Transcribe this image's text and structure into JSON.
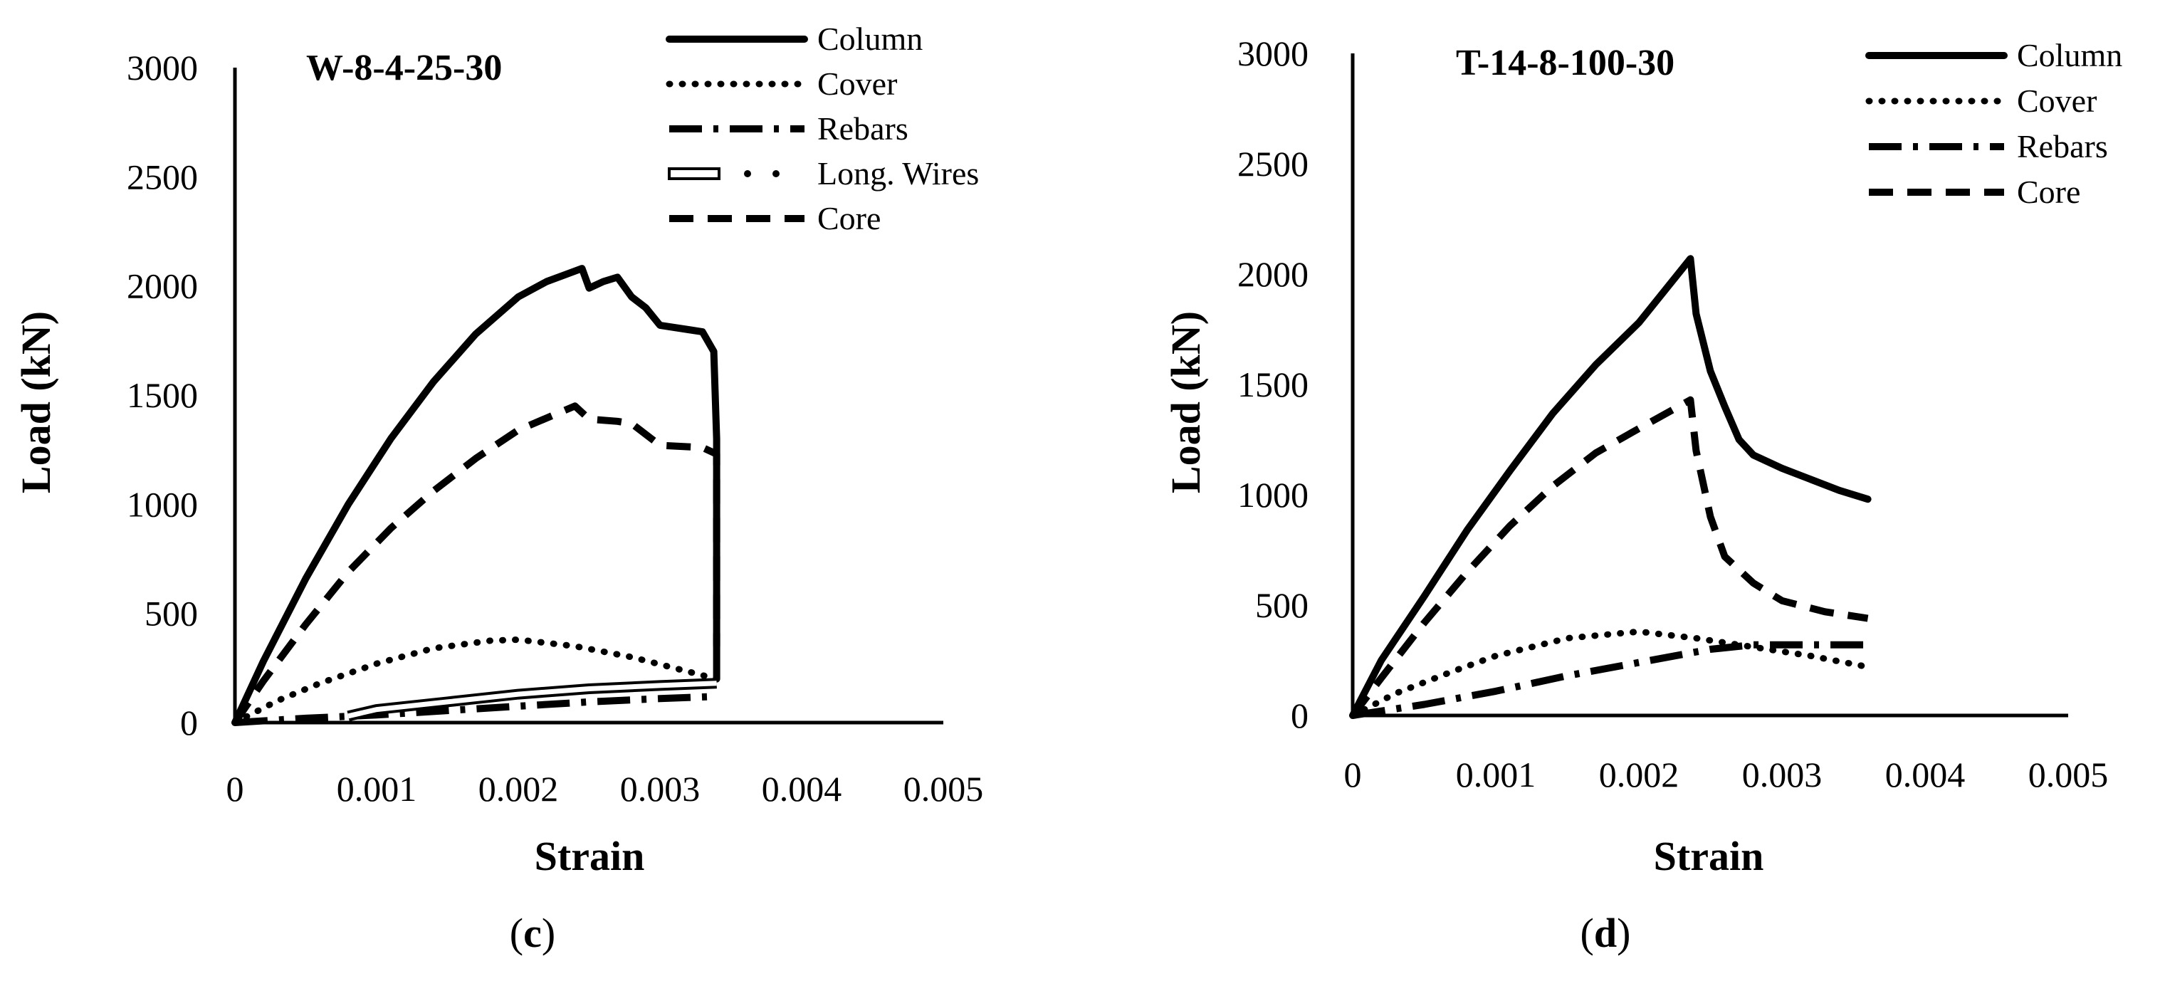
{
  "chart_data": [
    {
      "type": "line",
      "title": "W-8-4-25-30",
      "xlabel": "Strain",
      "ylabel": "Load (kN)",
      "panel_label_open": "(",
      "panel_label_letter": "c",
      "panel_label_close": ")",
      "xlim": [
        0,
        0.005
      ],
      "ylim": [
        0,
        3000
      ],
      "x_ticks": [
        "0",
        "0.001",
        "0.002",
        "0.003",
        "0.004",
        "0.005"
      ],
      "y_ticks": [
        "0",
        "500",
        "1000",
        "1500",
        "2000",
        "2500",
        "3000"
      ],
      "legend_position": "top-right",
      "series": [
        {
          "name": "Column",
          "style": "solid",
          "x": [
            0,
            0.0002,
            0.0005,
            0.0008,
            0.0011,
            0.0014,
            0.0017,
            0.002,
            0.0022,
            0.00245,
            0.0025,
            0.0026,
            0.0027,
            0.0028,
            0.0029,
            0.003,
            0.0032,
            0.0033,
            0.00338,
            0.0034,
            0.0034
          ],
          "y": [
            0,
            280,
            660,
            1000,
            1300,
            1560,
            1780,
            1950,
            2020,
            2080,
            1990,
            2020,
            2040,
            1950,
            1900,
            1820,
            1800,
            1790,
            1700,
            1300,
            200
          ]
        },
        {
          "name": "Cover",
          "style": "dotted",
          "x": [
            0,
            0.0003,
            0.0006,
            0.001,
            0.0014,
            0.0018,
            0.002,
            0.0024,
            0.0028,
            0.0031,
            0.0034
          ],
          "y": [
            0,
            100,
            180,
            270,
            340,
            375,
            380,
            350,
            300,
            250,
            200
          ]
        },
        {
          "name": "Rebars",
          "style": "dashdot",
          "x": [
            0,
            0.0005,
            0.001,
            0.0015,
            0.002,
            0.0025,
            0.003,
            0.0034
          ],
          "y": [
            0,
            20,
            35,
            55,
            75,
            95,
            110,
            120
          ]
        },
        {
          "name": "Long. Wires",
          "style": "double",
          "x": [
            0.0008,
            0.001,
            0.0015,
            0.002,
            0.0025,
            0.003,
            0.0034
          ],
          "y": [
            30,
            60,
            95,
            130,
            155,
            170,
            180
          ]
        },
        {
          "name": "Core",
          "style": "dashed",
          "x": [
            0,
            0.0002,
            0.0005,
            0.0008,
            0.0011,
            0.0014,
            0.0017,
            0.002,
            0.0024,
            0.0025,
            0.0027,
            0.0028,
            0.003,
            0.0033,
            0.0034,
            0.0034
          ],
          "y": [
            0,
            190,
            450,
            690,
            890,
            1060,
            1210,
            1340,
            1450,
            1390,
            1380,
            1370,
            1270,
            1260,
            1230,
            350
          ]
        }
      ]
    },
    {
      "type": "line",
      "title": "T-14-8-100-30",
      "xlabel": "Strain",
      "ylabel": "Load (kN)",
      "panel_label_open": "(",
      "panel_label_letter": "d",
      "panel_label_close": ")",
      "xlim": [
        0,
        0.005
      ],
      "ylim": [
        0,
        3000
      ],
      "x_ticks": [
        "0",
        "0.001",
        "0.002",
        "0.003",
        "0.004",
        "0.005"
      ],
      "y_ticks": [
        "0",
        "500",
        "1000",
        "1500",
        "2000",
        "2500",
        "3000"
      ],
      "legend_position": "top-right",
      "series": [
        {
          "name": "Column",
          "style": "solid",
          "x": [
            0,
            0.0002,
            0.0005,
            0.0008,
            0.0011,
            0.0014,
            0.0017,
            0.002,
            0.00236,
            0.0024,
            0.0025,
            0.0026,
            0.0027,
            0.0028,
            0.003,
            0.0032,
            0.0034,
            0.0036
          ],
          "y": [
            0,
            250,
            540,
            840,
            1110,
            1370,
            1590,
            1780,
            2070,
            1820,
            1560,
            1400,
            1250,
            1180,
            1120,
            1070,
            1020,
            980
          ]
        },
        {
          "name": "Cover",
          "style": "dotted",
          "x": [
            0,
            0.0003,
            0.0007,
            0.001,
            0.0015,
            0.002,
            0.0024,
            0.0028,
            0.0032,
            0.0036
          ],
          "y": [
            0,
            100,
            200,
            270,
            350,
            380,
            350,
            310,
            270,
            220
          ]
        },
        {
          "name": "Rebars",
          "style": "dashdot",
          "x": [
            0,
            0.0005,
            0.001,
            0.0015,
            0.002,
            0.0025,
            0.0028,
            0.0036
          ],
          "y": [
            0,
            50,
            110,
            180,
            240,
            300,
            320,
            320
          ]
        },
        {
          "name": "Core",
          "style": "dashed",
          "x": [
            0,
            0.0002,
            0.0005,
            0.0008,
            0.0011,
            0.0014,
            0.0017,
            0.002,
            0.00236,
            0.0024,
            0.0025,
            0.0026,
            0.0028,
            0.003,
            0.0033,
            0.0036
          ],
          "y": [
            0,
            170,
            420,
            650,
            860,
            1040,
            1190,
            1300,
            1430,
            1200,
            900,
            720,
            600,
            520,
            470,
            440
          ]
        }
      ]
    }
  ]
}
